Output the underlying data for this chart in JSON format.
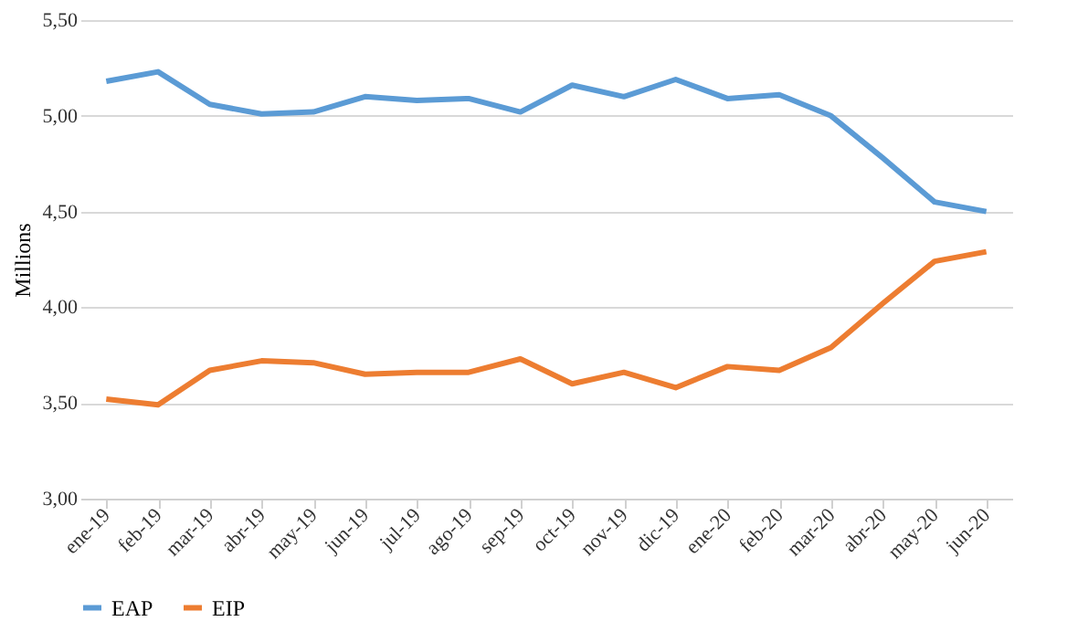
{
  "chart_data": {
    "type": "line",
    "ylabel": "Millions",
    "categories": [
      "ene-19",
      "feb-19",
      "mar-19",
      "abr-19",
      "may-19",
      "jun-19",
      "jul-19",
      "ago-19",
      "sep-19",
      "oct-19",
      "nov-19",
      "dic-19",
      "ene-20",
      "feb-20",
      "mar-20",
      "abr-20",
      "may-20",
      "jun-20"
    ],
    "series": [
      {
        "name": "EAP",
        "color": "#5b9bd5",
        "values": [
          5.18,
          5.23,
          5.06,
          5.01,
          5.02,
          5.1,
          5.08,
          5.09,
          5.02,
          5.16,
          5.1,
          5.19,
          5.09,
          5.11,
          5.0,
          4.78,
          4.55,
          4.5
        ]
      },
      {
        "name": "EIP",
        "color": "#ed7d31",
        "values": [
          3.52,
          3.49,
          3.67,
          3.72,
          3.71,
          3.65,
          3.66,
          3.66,
          3.73,
          3.6,
          3.66,
          3.58,
          3.69,
          3.67,
          3.79,
          4.02,
          4.24,
          4.29
        ]
      }
    ],
    "ylim": [
      3.0,
      5.5
    ],
    "yticks": [
      {
        "value": 3.0,
        "label": "3,00"
      },
      {
        "value": 3.5,
        "label": "3,50"
      },
      {
        "value": 4.0,
        "label": "4,00"
      },
      {
        "value": 4.5,
        "label": "4,50"
      },
      {
        "value": 5.0,
        "label": "5,00"
      },
      {
        "value": 5.5,
        "label": "5,50"
      }
    ],
    "grid": "y",
    "legend": "bottom",
    "marker": "none",
    "line_style": "solid"
  }
}
